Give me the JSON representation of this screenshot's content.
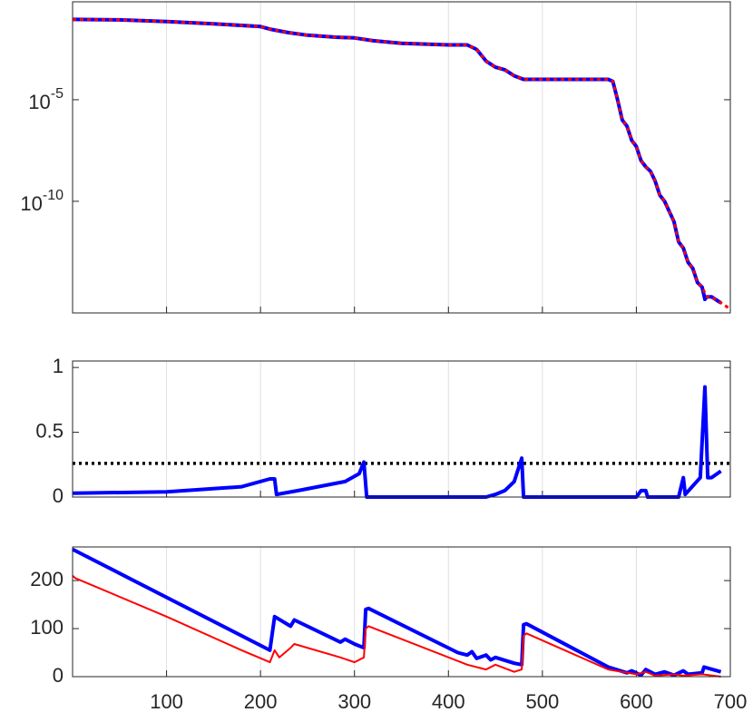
{
  "chart_data": [
    {
      "type": "line",
      "log_y": true,
      "grid": "x",
      "xlim": [
        0,
        700
      ],
      "xticks": [
        100,
        200,
        300,
        400,
        500,
        600,
        700
      ],
      "ylim": [
        3.2e-16,
        0.66
      ],
      "yticks": [
        {
          "value": 1e-05,
          "label": "10-5"
        },
        {
          "value": 1e-10,
          "label": "10-10"
        }
      ],
      "x": [
        0,
        50,
        100,
        150,
        200,
        210,
        230,
        250,
        280,
        300,
        320,
        350,
        400,
        420,
        430,
        440,
        450,
        460,
        470,
        480,
        520,
        560,
        570,
        575,
        580,
        585,
        590,
        595,
        600,
        605,
        610,
        615,
        620,
        625,
        630,
        640,
        645,
        650,
        655,
        660,
        665,
        670,
        673,
        675,
        680,
        690,
        700
      ],
      "series": [
        {
          "color": "#0000ff",
          "width": 4,
          "dash": "solid",
          "values": [
            0.09,
            0.085,
            0.07,
            0.055,
            0.04,
            0.03,
            0.02,
            0.015,
            0.012,
            0.011,
            0.008,
            0.006,
            0.005,
            0.005,
            0.003,
            0.0008,
            0.0004,
            0.0003,
            0.00015,
            0.0001,
            0.0001,
            0.0001,
            0.0001,
            8e-05,
            1e-05,
            1e-06,
            5e-07,
            1e-07,
            5e-08,
            1e-08,
            5e-09,
            3e-09,
            1e-09,
            2e-10,
            1e-10,
            1e-11,
            1e-12,
            5e-13,
            1e-13,
            5e-14,
            1e-14,
            6e-15,
            1.5e-15,
            2e-15,
            2e-15,
            1e-15,
            null
          ]
        },
        {
          "color": "#ff0000",
          "width": 3,
          "dash": "dotted",
          "values": [
            0.09,
            0.085,
            0.07,
            0.055,
            0.04,
            0.03,
            0.02,
            0.015,
            0.012,
            0.011,
            0.008,
            0.006,
            0.005,
            0.005,
            0.003,
            0.0008,
            0.0004,
            0.0003,
            0.00015,
            0.0001,
            0.0001,
            0.0001,
            0.0001,
            8e-05,
            1e-05,
            1e-06,
            5e-07,
            1e-07,
            5e-08,
            1e-08,
            5e-09,
            3e-09,
            1e-09,
            2e-10,
            1e-10,
            1e-11,
            1e-12,
            5e-13,
            1e-13,
            5e-14,
            1e-14,
            6e-15,
            3e-15,
            2e-15,
            2e-15,
            1e-15,
            5e-16
          ]
        }
      ]
    },
    {
      "type": "line",
      "grid": "x",
      "xlim": [
        0,
        700
      ],
      "xticks": [
        100,
        200,
        300,
        400,
        500,
        600,
        700
      ],
      "ylim": [
        0,
        1.05
      ],
      "yticks": [
        0,
        0.5,
        1
      ],
      "hlines": [
        {
          "value": 0.26,
          "color": "#000000",
          "dash": "dotted"
        }
      ],
      "x": [
        0,
        100,
        180,
        210,
        215,
        217,
        240,
        290,
        305,
        310,
        313,
        440,
        450,
        460,
        470,
        478,
        480,
        600,
        605,
        610,
        612,
        645,
        650,
        652,
        668,
        673,
        676,
        680,
        690
      ],
      "series": [
        {
          "color": "#0000ff",
          "width": 4,
          "dash": "solid",
          "values": [
            0.03,
            0.04,
            0.08,
            0.14,
            0.14,
            0.02,
            0.05,
            0.12,
            0.18,
            0.27,
            0.0,
            0.0,
            0.02,
            0.05,
            0.12,
            0.3,
            0.0,
            0.0,
            0.05,
            0.05,
            0.0,
            0.0,
            0.15,
            0.02,
            0.15,
            0.85,
            0.15,
            0.15,
            0.2
          ]
        }
      ]
    },
    {
      "type": "line",
      "grid": "x",
      "xlim": [
        0,
        700
      ],
      "xticks": [
        100,
        200,
        300,
        400,
        500,
        600,
        700
      ],
      "ylim": [
        0,
        270
      ],
      "yticks": [
        0,
        100,
        200
      ],
      "series": [
        {
          "color": "#0000ff",
          "width": 4,
          "dash": "solid",
          "x": [
            0,
            210,
            215,
            232,
            236,
            285,
            290,
            300,
            310,
            312,
            315,
            410,
            420,
            425,
            430,
            440,
            445,
            450,
            470,
            478,
            480,
            483,
            570,
            590,
            595,
            605,
            610,
            620,
            630,
            640,
            650,
            655,
            670,
            672,
            690
          ],
          "values": [
            265,
            55,
            125,
            105,
            118,
            72,
            78,
            68,
            60,
            140,
            142,
            50,
            45,
            52,
            38,
            45,
            35,
            40,
            28,
            25,
            108,
            110,
            20,
            8,
            12,
            3,
            15,
            5,
            10,
            3,
            12,
            5,
            8,
            20,
            10
          ]
        },
        {
          "color": "#ff0000",
          "width": 2,
          "dash": "solid",
          "x": [
            0,
            3,
            100,
            180,
            210,
            215,
            220,
            232,
            236,
            285,
            300,
            310,
            312,
            315,
            420,
            440,
            450,
            470,
            478,
            480,
            483,
            570,
            600,
            610,
            620,
            640,
            650,
            670,
            690
          ],
          "values": [
            210,
            205,
            125,
            55,
            30,
            55,
            40,
            60,
            68,
            40,
            30,
            40,
            100,
            105,
            25,
            15,
            25,
            10,
            15,
            85,
            90,
            15,
            5,
            10,
            2,
            5,
            2,
            5,
            0
          ]
        }
      ]
    }
  ]
}
